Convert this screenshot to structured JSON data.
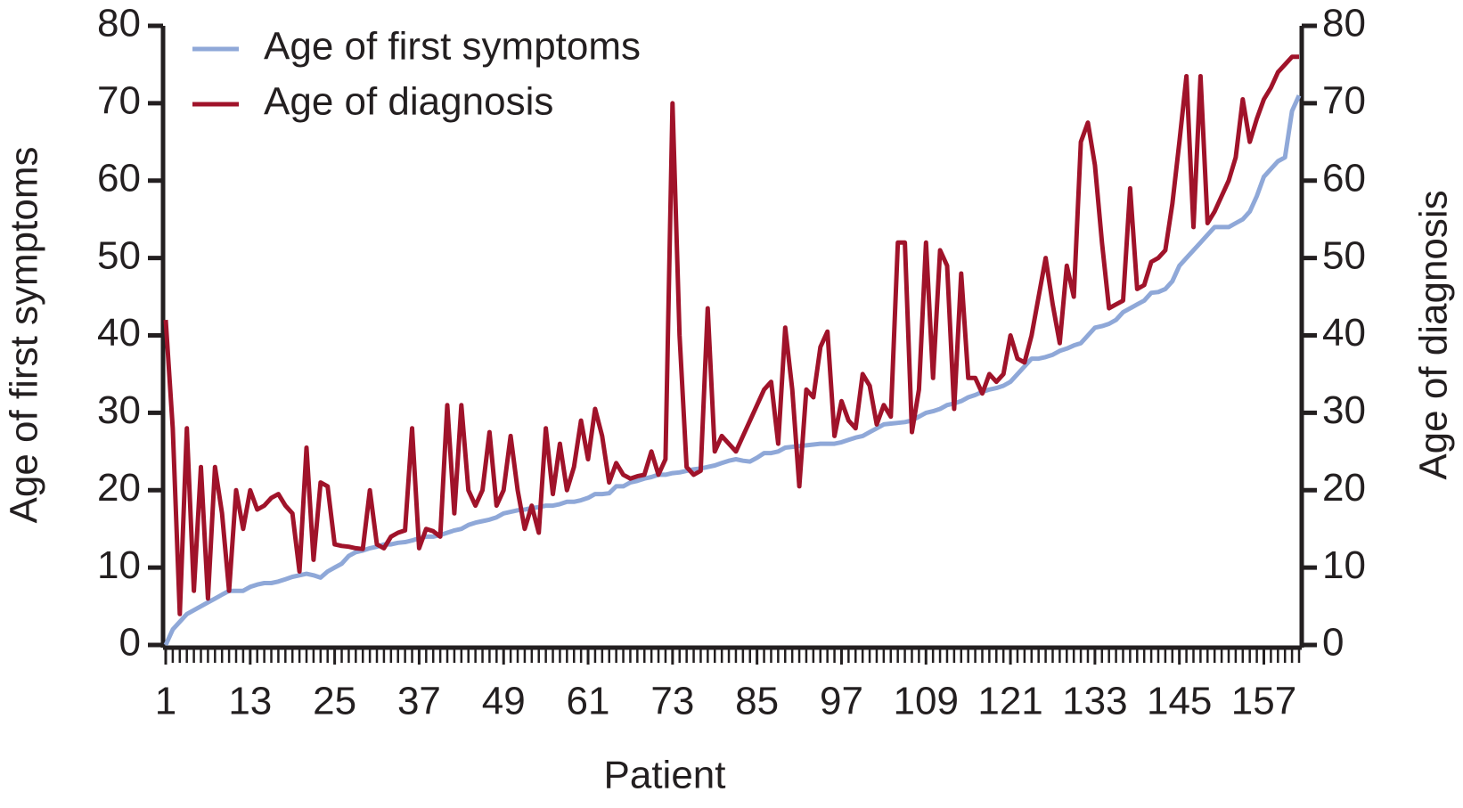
{
  "chart_data": {
    "type": "line",
    "x_label": "Patient",
    "y_label": "Age of first symptoms",
    "y2_label": "Age of diagnosis",
    "x": [
      1,
      2,
      3,
      4,
      5,
      6,
      7,
      8,
      9,
      10,
      11,
      12,
      13,
      14,
      15,
      16,
      17,
      18,
      19,
      20,
      21,
      22,
      23,
      24,
      25,
      26,
      27,
      28,
      29,
      30,
      31,
      32,
      33,
      34,
      35,
      36,
      37,
      38,
      39,
      40,
      41,
      42,
      43,
      44,
      45,
      46,
      47,
      48,
      49,
      50,
      51,
      52,
      53,
      54,
      55,
      56,
      57,
      58,
      59,
      60,
      61,
      62,
      63,
      64,
      65,
      66,
      67,
      68,
      69,
      70,
      71,
      72,
      73,
      74,
      75,
      76,
      77,
      78,
      79,
      80,
      81,
      82,
      83,
      84,
      85,
      86,
      87,
      88,
      89,
      90,
      91,
      92,
      93,
      94,
      95,
      96,
      97,
      98,
      99,
      100,
      101,
      102,
      103,
      104,
      105,
      106,
      107,
      108,
      109,
      110,
      111,
      112,
      113,
      114,
      115,
      116,
      117,
      118,
      119,
      120,
      121,
      122,
      123,
      124,
      125,
      126,
      127,
      128,
      129,
      130,
      131,
      132,
      133,
      134,
      135,
      136,
      137,
      138,
      139,
      140,
      141,
      142,
      143,
      144,
      145,
      146,
      147,
      148,
      149,
      150,
      151,
      152,
      153,
      154,
      155,
      156,
      157,
      158,
      159,
      160,
      161,
      162
    ],
    "xlim": [
      1,
      162
    ],
    "xticks": [
      1,
      13,
      25,
      37,
      49,
      61,
      73,
      85,
      97,
      109,
      121,
      133,
      145,
      157
    ],
    "ylim": [
      0,
      80
    ],
    "yticks": [
      0,
      10,
      20,
      30,
      40,
      50,
      60,
      70,
      80
    ],
    "y2lim": [
      0,
      80
    ],
    "y2ticks": [
      0,
      10,
      20,
      30,
      40,
      50,
      60,
      70,
      80
    ],
    "legend": "top-left",
    "series": [
      {
        "name": "Age of first symptoms",
        "color": "#8fa8d8",
        "values": [
          0,
          2,
          3,
          4,
          4.5,
          5,
          5.5,
          6,
          6.5,
          7,
          7,
          7,
          7.5,
          7.8,
          8,
          8,
          8.2,
          8.5,
          8.8,
          9,
          9.2,
          9,
          8.7,
          9.5,
          10,
          10.5,
          11.5,
          12,
          12.2,
          12.5,
          12.7,
          13,
          13,
          13.2,
          13.3,
          13.5,
          13.8,
          14,
          14,
          14.2,
          14.5,
          14.8,
          15,
          15.5,
          15.8,
          16,
          16.2,
          16.5,
          17,
          17.2,
          17.4,
          17.5,
          17.7,
          17.8,
          18,
          18,
          18.2,
          18.5,
          18.5,
          18.7,
          19,
          19.5,
          19.5,
          19.6,
          20.5,
          20.5,
          21,
          21.2,
          21.5,
          21.7,
          22,
          22,
          22.2,
          22.3,
          22.5,
          22.7,
          22.8,
          23,
          23.2,
          23.5,
          23.8,
          24,
          23.8,
          23.7,
          24.2,
          24.8,
          24.8,
          25,
          25.5,
          25.6,
          25.7,
          25.8,
          25.9,
          26,
          26,
          26,
          26.2,
          26.5,
          26.8,
          27,
          27.5,
          28,
          28.5,
          28.6,
          28.7,
          28.8,
          29,
          29.5,
          30,
          30.2,
          30.5,
          31,
          31.2,
          31.5,
          32,
          32.3,
          32.7,
          33,
          33.2,
          33.5,
          34,
          35,
          36,
          37,
          37,
          37.2,
          37.5,
          38,
          38.3,
          38.7,
          39,
          40,
          41,
          41.2,
          41.5,
          42,
          43,
          43.5,
          44,
          44.5,
          45.5,
          45.6,
          46,
          47,
          49,
          50,
          51,
          52,
          53,
          54,
          54,
          54,
          54.5,
          55,
          56,
          58,
          60.5,
          61.5,
          62.5,
          63,
          69,
          71
        ]
      },
      {
        "name": "Age of diagnosis",
        "color": "#a0132a",
        "axis": "y2",
        "values": [
          42,
          28,
          4,
          28,
          7,
          23,
          6,
          23,
          17,
          7,
          20,
          15,
          20,
          17.5,
          18,
          19,
          19.5,
          18,
          17,
          9.5,
          25.5,
          11,
          21,
          20.5,
          13,
          12.8,
          12.7,
          12.5,
          12.4,
          20,
          13,
          12.5,
          14,
          14.5,
          14.8,
          28,
          12.5,
          15,
          14.7,
          14,
          31,
          17,
          31,
          20,
          18,
          20,
          27.5,
          18,
          20,
          27,
          20,
          15,
          18,
          14.5,
          28,
          19.5,
          26,
          20,
          23,
          29,
          24,
          30.5,
          27,
          21,
          23.5,
          22,
          21.5,
          21.8,
          22,
          25,
          22,
          24,
          70,
          40,
          23,
          22,
          22.5,
          43.5,
          25,
          27,
          26,
          25,
          27,
          29,
          31,
          33,
          34,
          26,
          41,
          33,
          20.5,
          33,
          32,
          38.5,
          40.5,
          27,
          31.5,
          29,
          28,
          35,
          33.5,
          28.5,
          31,
          29.5,
          52,
          52,
          27.5,
          33,
          52,
          34.5,
          51,
          49,
          30.5,
          48,
          34.5,
          34.5,
          32.5,
          35,
          34,
          35,
          40,
          37,
          36.5,
          40,
          45,
          50,
          44,
          39,
          49,
          45,
          65,
          67.5,
          62,
          52,
          43.5,
          44,
          44.5,
          59,
          46,
          46.5,
          49.5,
          50,
          51,
          57,
          65,
          73.5,
          54,
          73.5,
          54.5,
          56,
          58,
          60,
          63,
          70.5,
          65,
          68,
          70.5,
          72,
          74,
          75,
          76,
          76
        ]
      }
    ]
  }
}
